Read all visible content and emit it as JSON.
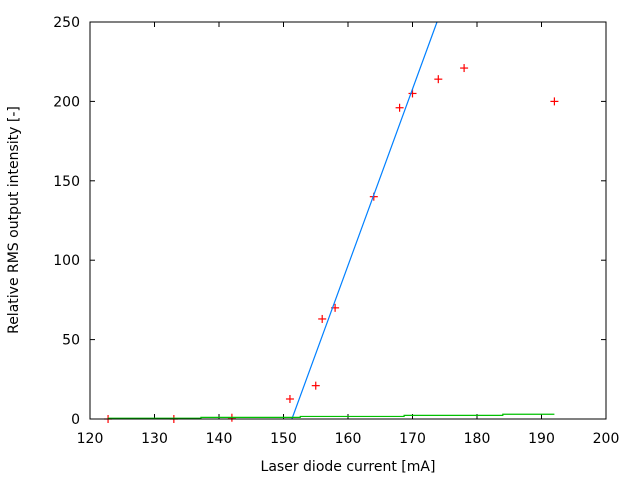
{
  "chart_data": {
    "type": "scatter",
    "title": "",
    "xlabel": "Laser diode current [mA]",
    "ylabel": "Relative RMS output intensity [-]",
    "xlim": [
      120,
      200
    ],
    "ylim": [
      0,
      250
    ],
    "xticks": [
      120,
      130,
      140,
      150,
      160,
      170,
      180,
      190,
      200
    ],
    "yticks": [
      0,
      50,
      100,
      150,
      200,
      250
    ],
    "grid": false,
    "series": [
      {
        "kind": "points",
        "marker": "plus",
        "color": "#ff0000",
        "x": [
          122.8,
          133,
          142,
          151,
          155,
          156,
          158,
          164,
          168,
          170,
          174,
          178,
          192
        ],
        "y": [
          0,
          0,
          0.8,
          12.6,
          21,
          63,
          70,
          140,
          196,
          205,
          214,
          221,
          200
        ]
      },
      {
        "kind": "line",
        "color": "#0080ff",
        "x": [
          151.3,
          173.8
        ],
        "y": [
          0,
          250
        ]
      },
      {
        "kind": "step",
        "color": "#00c000",
        "x": [
          122.8,
          137.2,
          137.2,
          152.6,
          152.6,
          168.7,
          168.7,
          184,
          184,
          192
        ],
        "y": [
          0.5,
          0.5,
          1.0,
          1.0,
          1.6,
          1.6,
          2.3,
          2.3,
          3.0,
          3.0
        ]
      }
    ]
  }
}
